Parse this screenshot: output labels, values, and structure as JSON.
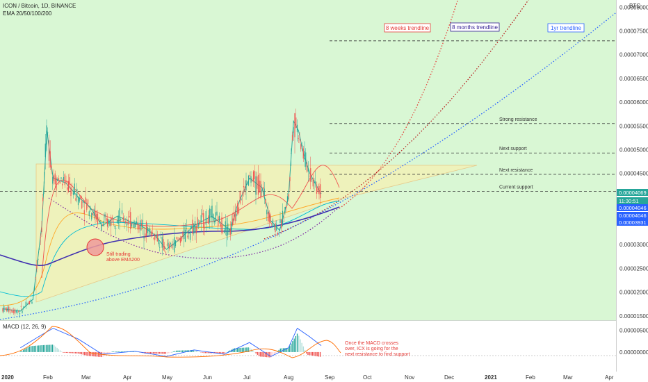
{
  "header": {
    "symbol_line": "ICON / Bitcoin, 1D, BINANCE",
    "indicator_line": "EMA 20/50/100/200",
    "currency": "BTC",
    "macd_label": "MACD (12, 26, 9)"
  },
  "price_axis": {
    "ticks": [
      "0.00008000",
      "0.00007500",
      "0.00007000",
      "0.00006500",
      "0.00006000",
      "0.00005500",
      "0.00005000",
      "0.00004500",
      "0.00003500",
      "0.00003000",
      "0.00002500",
      "0.00002000",
      "0.00001500"
    ],
    "tick_values": [
      8e-05,
      7.5e-05,
      7e-05,
      6.5e-05,
      6e-05,
      5.5e-05,
      5e-05,
      4.5e-05,
      3.5e-05,
      3e-05,
      2.5e-05,
      2e-05,
      1.5e-05
    ],
    "badges": [
      {
        "text": "0.00004069",
        "color": "#26a69a"
      },
      {
        "text": "11:30:51",
        "color": "#26a69a"
      },
      {
        "text": "0.00004046",
        "color": "#2962ff"
      },
      {
        "text": "0.00004046",
        "color": "#2962ff"
      },
      {
        "text": "0.00003931",
        "color": "#2962ff"
      }
    ]
  },
  "macd_axis": {
    "ticks": [
      "0.00000500",
      "0.00000000"
    ],
    "tick_values": [
      5e-06,
      0
    ]
  },
  "time_axis": {
    "labels": [
      "2020",
      "Feb",
      "Mar",
      "Apr",
      "May",
      "Jun",
      "Jul",
      "Aug",
      "Sep",
      "Oct",
      "Nov",
      "Dec",
      "2021",
      "Feb",
      "Mar",
      "Apr"
    ]
  },
  "levels": [
    {
      "label": "",
      "value": 7.29e-05
    },
    {
      "label": "Strong resistance",
      "value": 5.55e-05
    },
    {
      "label": "Next support",
      "value": 4.93e-05
    },
    {
      "label": "Next resistance",
      "value": 4.48e-05
    },
    {
      "label": "Current support",
      "value": 4.12e-05
    }
  ],
  "trendlines": [
    {
      "label": "8 weeks trendline",
      "color": "#e53935"
    },
    {
      "label": "8 months trendline",
      "color": "#311b92"
    },
    {
      "label": "1yr trendline",
      "color": "#2962ff"
    }
  ],
  "annotations": {
    "ema200_note": [
      "Still trading",
      "above EMA200"
    ],
    "macd_note": [
      "Once the MACD crosses",
      "over, ICX is going for the",
      "next resistance to find support"
    ]
  },
  "chart_data": {
    "type": "line",
    "title": "ICON / Bitcoin, 1D, BINANCE",
    "xlabel": "",
    "ylabel": "BTC",
    "ylim": [
      1.41e-05,
      8.15e-05
    ],
    "grid": false,
    "series": [
      {
        "name": "ICON / Bitcoin",
        "x": [
          "2020-01-01",
          "2020-01-15",
          "2020-01-25",
          "2020-02-01",
          "2020-02-05",
          "2020-02-10",
          "2020-02-20",
          "2020-03-01",
          "2020-03-10",
          "2020-03-20",
          "2020-04-01",
          "2020-04-10",
          "2020-04-20",
          "2020-05-01",
          "2020-05-10",
          "2020-05-20",
          "2020-06-01",
          "2020-06-15",
          "2020-06-30",
          "2020-07-05",
          "2020-07-15",
          "2020-07-25",
          "2020-08-01",
          "2020-08-08",
          "2020-08-15",
          "2020-08-19",
          "2020-08-23",
          "2020-08-27",
          "2020-09-01",
          "2020-09-05",
          "2020-09-10"
        ],
        "values": [
          1.65e-05,
          1.6e-05,
          1.85e-05,
          3.4e-05,
          5.4e-05,
          4.4e-05,
          4.3e-05,
          4e-05,
          3.8e-05,
          3.4e-05,
          3.6e-05,
          3.5e-05,
          3.4e-05,
          3.2e-05,
          2.9e-05,
          3.1e-05,
          3.4e-05,
          3.6e-05,
          3.3e-05,
          3.8e-05,
          4.4e-05,
          4.2e-05,
          3.5e-05,
          3.3e-05,
          4e-05,
          5.6e-05,
          5.4e-05,
          4.9e-05,
          4.5e-05,
          4.3e-05,
          4.07e-05
        ]
      },
      {
        "name": "EMA 200",
        "x": [
          "2020-01-01",
          "2020-01-15",
          "2020-02-01",
          "2020-03-01",
          "2020-04-01",
          "2020-05-01",
          "2020-06-01",
          "2020-07-01",
          "2020-08-01",
          "2020-08-20",
          "2020-09-10"
        ],
        "values": [
          2.9e-05,
          2.65e-05,
          2.5e-05,
          2.9e-05,
          3.1e-05,
          3.18e-05,
          3.3e-05,
          3.42e-05,
          3.55e-05,
          3.75e-05,
          3.93e-05
        ]
      }
    ],
    "macd": {
      "name": "MACD (12, 26, 9)",
      "x": [
        "2020-01-15",
        "2020-02-01",
        "2020-02-10",
        "2020-03-01",
        "2020-03-20",
        "2020-04-15",
        "2020-05-10",
        "2020-06-01",
        "2020-06-25",
        "2020-07-15",
        "2020-08-01",
        "2020-08-15",
        "2020-08-22",
        "2020-09-01",
        "2020-09-10"
      ],
      "values": [
        1e-06,
        4e-06,
        5.5e-06,
        3e-06,
        -5e-07,
        2e-07,
        -1e-06,
        5e-07,
        -5e-07,
        2.2e-06,
        -1e-06,
        1e-06,
        5.5e-06,
        3.5e-06,
        1.5e-06
      ]
    }
  }
}
